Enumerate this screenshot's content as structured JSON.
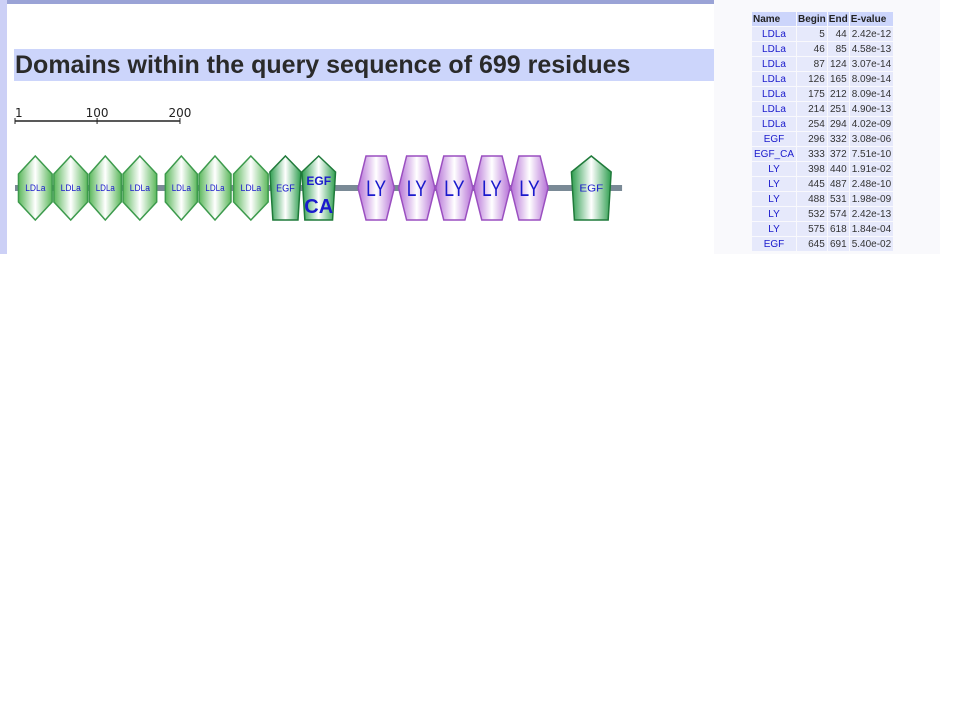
{
  "title": "Domains within the query sequence of 699 residues",
  "sequence_length": 699,
  "ruler": {
    "ticks": [
      {
        "value": 1,
        "label": "1"
      },
      {
        "value": 100,
        "label": "100"
      },
      {
        "value": 200,
        "label": "200"
      }
    ]
  },
  "colors": {
    "ldla": "#5cb85c",
    "egf": "#2e9e4f",
    "ly": "#b46fd6",
    "backbone": "#7a8a96",
    "label": "#1a1acc"
  },
  "table": {
    "headers": [
      "Name",
      "Begin",
      "End",
      "E-value"
    ],
    "rows": [
      {
        "name": "LDLa",
        "begin": 5,
        "end": 44,
        "evalue": "2.42e-12",
        "glyph": "LDLa"
      },
      {
        "name": "LDLa",
        "begin": 46,
        "end": 85,
        "evalue": "4.58e-13",
        "glyph": "LDLa"
      },
      {
        "name": "LDLa",
        "begin": 87,
        "end": 124,
        "evalue": "3.07e-14",
        "glyph": "LDLa"
      },
      {
        "name": "LDLa",
        "begin": 126,
        "end": 165,
        "evalue": "8.09e-14",
        "glyph": "LDLa"
      },
      {
        "name": "LDLa",
        "begin": 175,
        "end": 212,
        "evalue": "8.09e-14",
        "glyph": "LDLa"
      },
      {
        "name": "LDLa",
        "begin": 214,
        "end": 251,
        "evalue": "4.90e-13",
        "glyph": "LDLa"
      },
      {
        "name": "LDLa",
        "begin": 254,
        "end": 294,
        "evalue": "4.02e-09",
        "glyph": "LDLa"
      },
      {
        "name": "EGF",
        "begin": 296,
        "end": 332,
        "evalue": "3.08e-06",
        "glyph": "EGF"
      },
      {
        "name": "EGF_CA",
        "begin": 333,
        "end": 372,
        "evalue": "7.51e-10",
        "glyph": "EGF CA"
      },
      {
        "name": "LY",
        "begin": 398,
        "end": 440,
        "evalue": "1.91e-02",
        "glyph": "LY"
      },
      {
        "name": "LY",
        "begin": 445,
        "end": 487,
        "evalue": "2.48e-10",
        "glyph": "LY"
      },
      {
        "name": "LY",
        "begin": 488,
        "end": 531,
        "evalue": "1.98e-09",
        "glyph": "LY"
      },
      {
        "name": "LY",
        "begin": 532,
        "end": 574,
        "evalue": "2.42e-13",
        "glyph": "LY"
      },
      {
        "name": "LY",
        "begin": 575,
        "end": 618,
        "evalue": "1.84e-04",
        "glyph": "LY"
      },
      {
        "name": "EGF",
        "begin": 645,
        "end": 691,
        "evalue": "5.40e-02",
        "glyph": "EGF"
      }
    ]
  }
}
